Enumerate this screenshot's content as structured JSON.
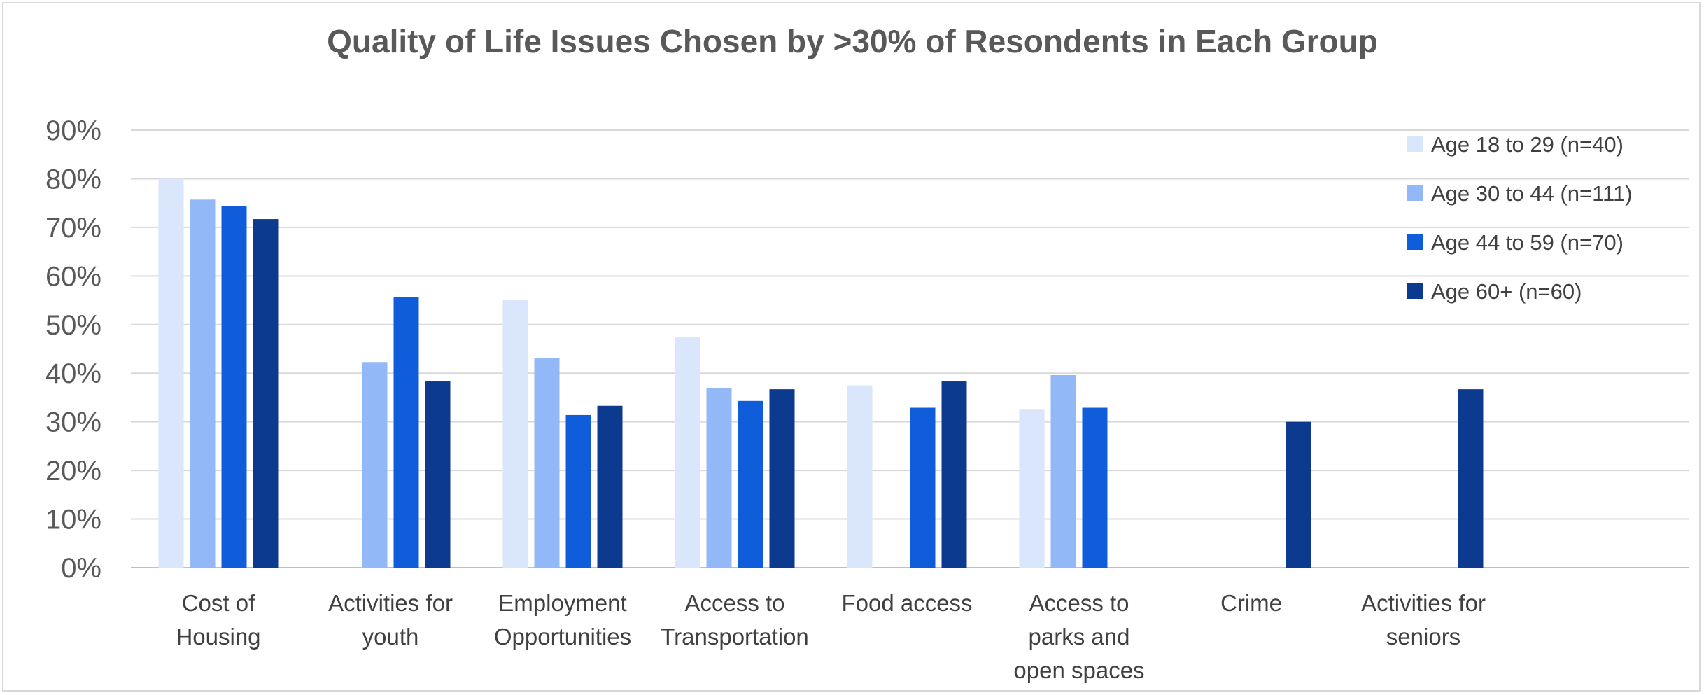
{
  "chart_data": {
    "type": "bar",
    "title": "Quality of Life Issues Chosen by >30% of Resondents in Each Group",
    "xlabel": "",
    "ylabel": "",
    "ylim": [
      0,
      90
    ],
    "yticks": [
      "0%",
      "10%",
      "20%",
      "30%",
      "40%",
      "50%",
      "60%",
      "70%",
      "80%",
      "90%"
    ],
    "categories": [
      [
        "Cost of",
        "Housing"
      ],
      [
        "Activities for",
        "youth"
      ],
      [
        "Employment",
        "Opportunities"
      ],
      [
        "Access to",
        "Transportation"
      ],
      [
        "Food access"
      ],
      [
        "Access to",
        "parks and",
        "open spaces"
      ],
      [
        "Crime"
      ],
      [
        "Activities for",
        "seniors"
      ]
    ],
    "series": [
      {
        "name": "Age 18 to 29 (n=40)",
        "color": "#dae6fb",
        "values": [
          80,
          null,
          55,
          47.5,
          37.5,
          32.5,
          null,
          null
        ]
      },
      {
        "name": "Age 30 to 44 (n=111)",
        "color": "#93b8f7",
        "values": [
          75.7,
          42.3,
          43.2,
          36.9,
          null,
          39.6,
          null,
          null
        ]
      },
      {
        "name": "Age 44 to 59 (n=70)",
        "color": "#0f5ddb",
        "values": [
          74.3,
          55.7,
          31.4,
          34.3,
          32.9,
          32.9,
          null,
          null
        ]
      },
      {
        "name": "Age 60+ (n=60)",
        "color": "#0b3a8f",
        "values": [
          71.7,
          38.3,
          33.3,
          36.7,
          38.3,
          null,
          30,
          36.7
        ]
      }
    ],
    "grid": true,
    "legend": "top-right"
  }
}
